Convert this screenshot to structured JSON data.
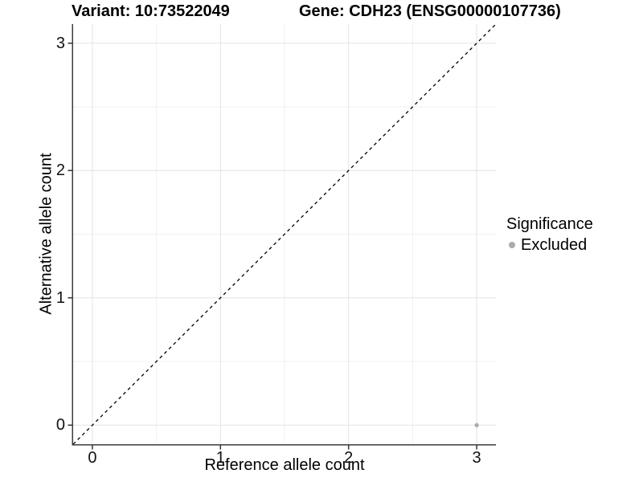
{
  "chart_data": {
    "type": "scatter",
    "title_variant": "Variant: 10:73522049",
    "title_gene": "Gene: CDH23 (ENSG00000107736)",
    "xlabel": "Reference allele count",
    "ylabel": "Alternative allele count",
    "xlim": [
      -0.15,
      3.15
    ],
    "ylim": [
      -0.15,
      3.15
    ],
    "xticks": [
      0,
      1,
      2,
      3
    ],
    "yticks": [
      0,
      1,
      2,
      3
    ],
    "grid": {
      "major_x": [
        0,
        1,
        2,
        3
      ],
      "major_y": [
        0,
        1,
        2,
        3
      ],
      "minor_x": [
        0.5,
        1.5,
        2.5
      ],
      "minor_y": [
        0.5,
        1.5,
        2.5
      ]
    },
    "reference_line": {
      "style": "dashed",
      "slope": 1,
      "intercept": 0,
      "from": [
        -0.15,
        -0.15
      ],
      "to": [
        3.15,
        3.15
      ]
    },
    "series": [
      {
        "name": "Excluded",
        "color": "#aaaaaa",
        "points": [
          {
            "x": 3,
            "y": 0
          }
        ]
      }
    ],
    "legend": {
      "title": "Significance",
      "position": "right"
    }
  },
  "colors": {
    "background": "#ffffff",
    "grid_major": "#e3e3e3",
    "grid_minor": "#f1f1f1",
    "axis_line": "#3c3c3c",
    "tick_mark": "#333333",
    "reference_line": "#000000",
    "text": "#000000"
  }
}
